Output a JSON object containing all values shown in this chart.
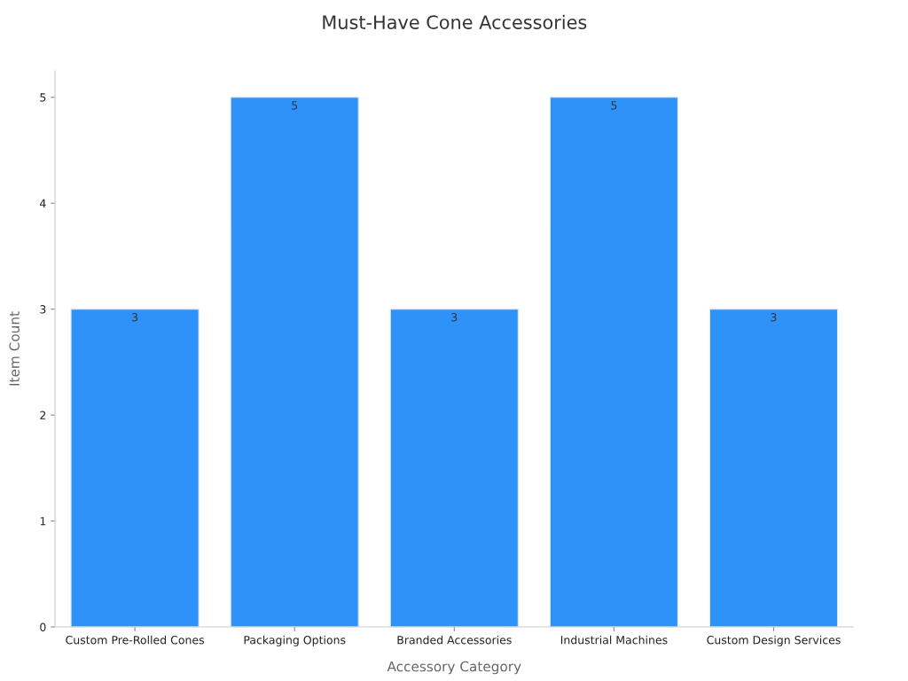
{
  "chart_data": {
    "type": "bar",
    "title": "Must-Have Cone Accessories",
    "xlabel": "Accessory Category",
    "ylabel": "Item Count",
    "categories": [
      "Custom Pre-Rolled Cones",
      "Packaging Options",
      "Branded Accessories",
      "Industrial Machines",
      "Custom Design Services"
    ],
    "values": [
      3,
      5,
      3,
      5,
      3
    ],
    "color": "#2f92f8",
    "ylim": [
      0,
      5.25
    ],
    "yticks": [
      0,
      1,
      2,
      3,
      4,
      5
    ],
    "grid": false,
    "data_labels": true
  }
}
